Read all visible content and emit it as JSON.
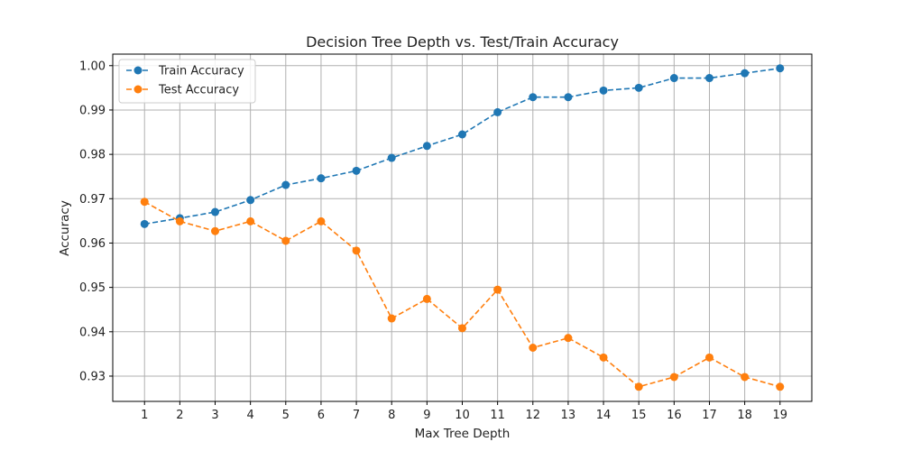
{
  "chart_data": {
    "type": "line",
    "title": "Decision Tree Depth vs. Test/Train Accuracy",
    "xlabel": "Max Tree Depth",
    "ylabel": "Accuracy",
    "x": [
      1,
      2,
      3,
      4,
      5,
      6,
      7,
      8,
      9,
      10,
      11,
      12,
      13,
      14,
      15,
      16,
      17,
      18,
      19
    ],
    "xlim": [
      0.1,
      19.9
    ],
    "ylim": [
      0.9243,
      1.0026
    ],
    "yticks": [
      0.93,
      0.94,
      0.95,
      0.96,
      0.97,
      0.98,
      0.99,
      1.0
    ],
    "ytick_labels": [
      "0.93",
      "0.94",
      "0.95",
      "0.96",
      "0.97",
      "0.98",
      "0.99",
      "1.00"
    ],
    "grid": true,
    "legend_position": "top-left",
    "series": [
      {
        "name": "Train Accuracy",
        "color": "#1f77b4",
        "line_style": "dashed",
        "marker": "circle",
        "values": [
          0.9643,
          0.9656,
          0.967,
          0.9697,
          0.9731,
          0.9746,
          0.9763,
          0.9792,
          0.9819,
          0.9845,
          0.9895,
          0.9929,
          0.9929,
          0.9944,
          0.995,
          0.9972,
          0.9972,
          0.9983,
          0.9994
        ]
      },
      {
        "name": "Test Accuracy",
        "color": "#ff7f0e",
        "line_style": "dashed",
        "marker": "circle",
        "values": [
          0.9693,
          0.9649,
          0.9627,
          0.9649,
          0.9605,
          0.9649,
          0.9583,
          0.943,
          0.9474,
          0.9408,
          0.9495,
          0.9364,
          0.9386,
          0.9342,
          0.9276,
          0.9298,
          0.9342,
          0.9298,
          0.9276
        ]
      }
    ]
  }
}
